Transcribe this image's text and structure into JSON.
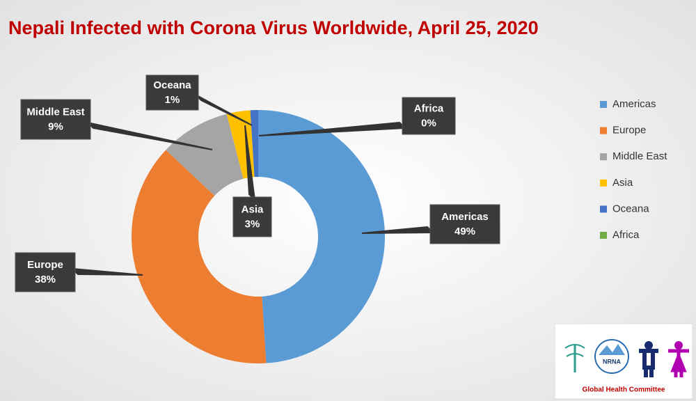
{
  "chart_data": {
    "type": "pie",
    "donut": true,
    "title": "Nepali Infected with Corona Virus Worldwide, April 25, 2020",
    "categories": [
      "Americas",
      "Europe",
      "Middle East",
      "Asia",
      "Oceana",
      "Africa"
    ],
    "values": [
      49,
      38,
      9,
      3,
      1,
      0
    ],
    "value_labels": [
      "49%",
      "38%",
      "9%",
      "3%",
      "1%",
      "0%"
    ],
    "colors": [
      "#5b9bd5",
      "#ed7d31",
      "#a5a5a5",
      "#ffc000",
      "#4472c4",
      "#70ad47"
    ],
    "legend": "right"
  },
  "logo": {
    "badge": "NRNA",
    "caption": "Global Health Committee"
  }
}
